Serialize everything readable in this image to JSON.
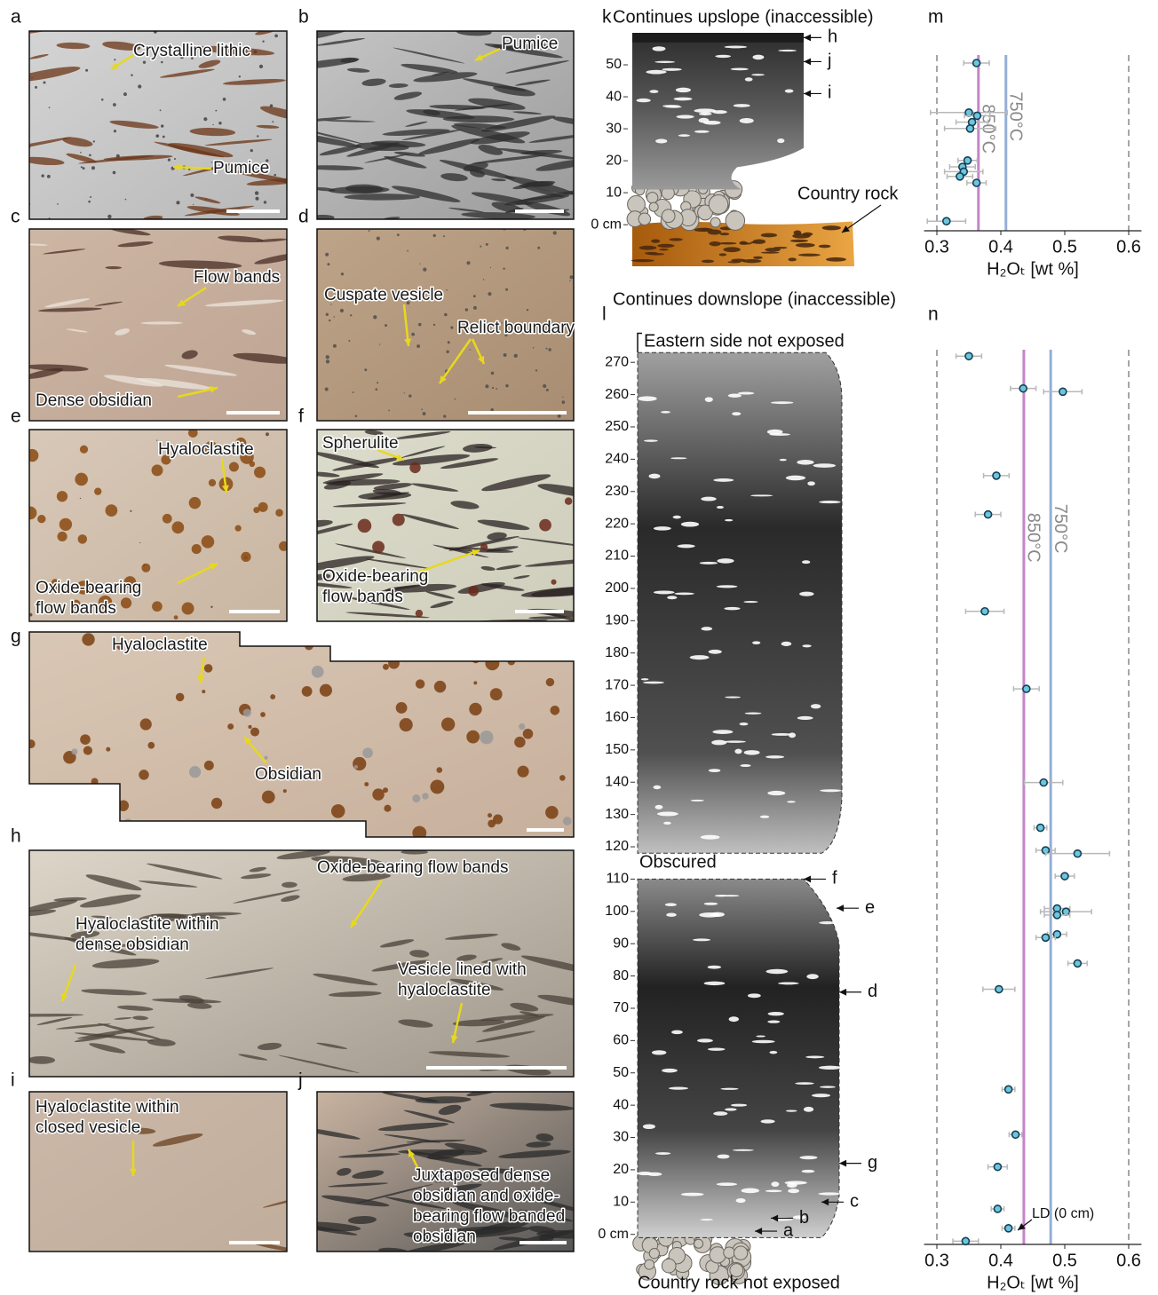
{
  "panels": [
    {
      "letter": "a",
      "labels": [
        {
          "lines": [
            "Crystalline lithic"
          ]
        },
        {
          "lines": [
            "Pumice"
          ]
        }
      ]
    },
    {
      "letter": "b",
      "labels": [
        {
          "lines": [
            "Pumice"
          ]
        }
      ]
    },
    {
      "letter": "c",
      "labels": [
        {
          "lines": [
            "Flow bands"
          ]
        },
        {
          "lines": [
            "Dense obsidian"
          ]
        }
      ]
    },
    {
      "letter": "d",
      "labels": [
        {
          "lines": [
            "Cuspate vesicle"
          ]
        },
        {
          "lines": [
            "Relict boundary"
          ]
        }
      ]
    },
    {
      "letter": "e",
      "labels": [
        {
          "lines": [
            "Hyaloclastite"
          ]
        },
        {
          "lines": [
            "Oxide-bearing",
            "flow bands"
          ]
        }
      ]
    },
    {
      "letter": "f",
      "labels": [
        {
          "lines": [
            "Spherulite"
          ]
        },
        {
          "lines": [
            "Oxide-bearing",
            "flow bands"
          ]
        }
      ]
    },
    {
      "letter": "g",
      "labels": [
        {
          "lines": [
            "Hyaloclastite"
          ]
        },
        {
          "lines": [
            "Obsidian"
          ]
        }
      ]
    },
    {
      "letter": "h",
      "labels": [
        {
          "lines": [
            "Oxide-bearing flow bands"
          ]
        },
        {
          "lines": [
            "Hyaloclastite within",
            "dense obsidian"
          ]
        },
        {
          "lines": [
            "Vesicle lined with",
            "hyaloclastite"
          ]
        }
      ]
    },
    {
      "letter": "i",
      "labels": [
        {
          "lines": [
            "Hyaloclastite within",
            "closed vesicle"
          ]
        }
      ]
    },
    {
      "letter": "j",
      "labels": [
        {
          "lines": [
            "Juxtaposed dense",
            "obsidian and oxide-",
            "bearing flow banded",
            "obsidian"
          ]
        }
      ]
    }
  ],
  "chart_data": [
    {
      "type": "column",
      "panel": "k",
      "top_label": "Continues upslope (inaccessible)",
      "bottom_label": "Continues downslope (inaccessible)",
      "annotation": "Country rock",
      "side_labels": [
        "h",
        "j",
        "i"
      ],
      "ylim": [
        -13,
        60
      ],
      "yticks": [
        {
          "value": 0,
          "label": "0 cm"
        },
        10,
        20,
        30,
        40,
        50
      ]
    },
    {
      "type": "scatter",
      "panel": "m",
      "x_label": "H₂Oₜ [wt %]",
      "x": [
        0.362,
        0.35,
        0.363,
        0.355,
        0.352,
        0.348,
        0.34,
        0.342,
        0.336,
        0.362,
        0.315
      ],
      "y": [
        50.5,
        35,
        34,
        32,
        30,
        20,
        18,
        16.5,
        15,
        13,
        1
      ],
      "xerr": [
        0.02,
        0.06,
        0.02,
        0.025,
        0.04,
        0.015,
        0.02,
        0.03,
        0.02,
        0.015,
        0.03
      ],
      "xlim": [
        0.28,
        0.62
      ],
      "xticks": [
        0.3,
        0.4,
        0.5,
        0.6
      ],
      "ylim": [
        -2,
        53
      ],
      "dashed_lines": [
        0.3,
        0.6
      ],
      "reference_lines": [
        {
          "label": "850°C",
          "value": 0.365,
          "color": "#c486c8"
        },
        {
          "label": "750°C",
          "value": 0.408,
          "color": "#94afd6"
        }
      ]
    },
    {
      "type": "column",
      "panel": "l",
      "top_label": "Eastern side not exposed",
      "middle_label": "Obscured",
      "bottom_label": "Country rock not exposed",
      "side_labels": [
        "f",
        "e",
        "d",
        "g",
        "c",
        "b",
        "a"
      ],
      "ylim": [
        -13,
        275
      ],
      "yticks": [
        {
          "value": 0,
          "label": "0 cm"
        },
        10,
        20,
        30,
        40,
        50,
        60,
        70,
        80,
        90,
        100,
        110,
        120,
        130,
        140,
        150,
        160,
        170,
        180,
        190,
        200,
        210,
        220,
        230,
        240,
        250,
        260,
        270
      ]
    },
    {
      "type": "scatter",
      "panel": "n",
      "x_label": "H₂Oₜ [wt %]",
      "annotation": "LD (0 cm)",
      "x": [
        0.35,
        0.435,
        0.497,
        0.393,
        0.38,
        0.375,
        0.44,
        0.467,
        0.462,
        0.47,
        0.52,
        0.5,
        0.488,
        0.502,
        0.488,
        0.488,
        0.47,
        0.52,
        0.397,
        0.412,
        0.423,
        0.395,
        0.395,
        0.412,
        0.345
      ],
      "y": [
        272,
        262,
        261,
        235,
        223,
        193,
        169,
        140,
        126,
        119,
        118,
        111,
        101,
        100,
        99,
        93,
        92,
        84,
        76,
        45,
        31,
        21,
        8,
        2,
        -2
      ],
      "xerr": [
        0.02,
        0.02,
        0.03,
        0.02,
        0.02,
        0.03,
        0.02,
        0.03,
        0.01,
        0.015,
        0.05,
        0.015,
        0.02,
        0.04,
        0.02,
        0.015,
        0.015,
        0.015,
        0.025,
        0.01,
        0.01,
        0.015,
        0.01,
        0.01,
        0.02
      ],
      "xlim": [
        0.28,
        0.62
      ],
      "xticks": [
        0.3,
        0.4,
        0.5,
        0.6
      ],
      "ylim": [
        -3,
        274
      ],
      "dashed_lines": [
        0.3,
        0.6
      ],
      "reference_lines": [
        {
          "label": "850°C",
          "value": 0.436,
          "color": "#c486c8"
        },
        {
          "label": "750°C",
          "value": 0.478,
          "color": "#94afd6"
        }
      ]
    }
  ]
}
